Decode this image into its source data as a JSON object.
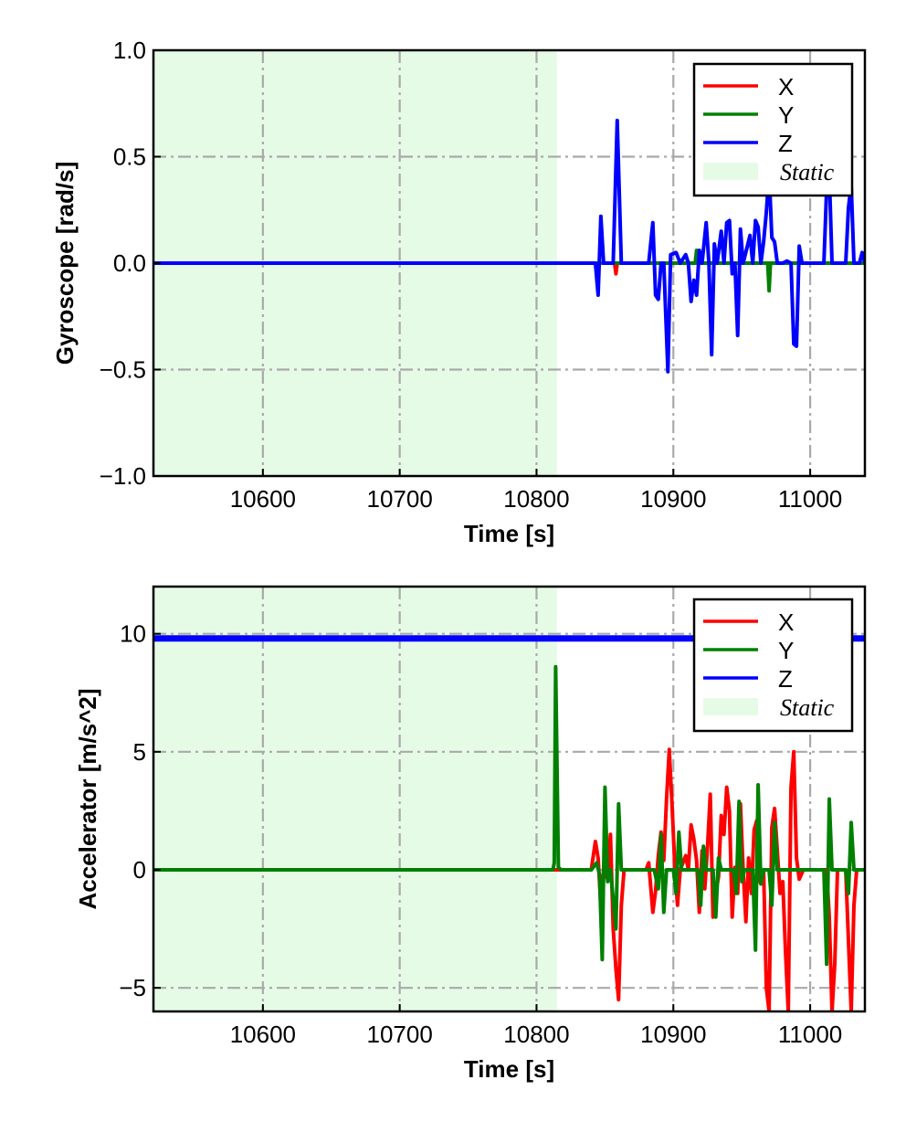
{
  "colors": {
    "X": "#ff0000",
    "Y": "#008000",
    "Z": "#0000ff",
    "static_fill": "#e6fbe6",
    "grid": "#a9a9a9"
  },
  "chart_data": [
    {
      "type": "line",
      "xlabel": "Time [s]",
      "ylabel": "Gyroscope [rad/s]",
      "xlim": [
        10520,
        11040
      ],
      "ylim": [
        -1.0,
        1.0
      ],
      "xticks": [
        10600,
        10700,
        10800,
        10900,
        11000
      ],
      "xtick_labels": [
        "10600",
        "10700",
        "10800",
        "10900",
        "11000"
      ],
      "yticks": [
        -1.0,
        -0.5,
        0.0,
        0.5,
        1.0
      ],
      "ytick_labels": [
        "−1.0",
        "−0.5",
        "0.0",
        "0.5",
        "1.0"
      ],
      "grid": true,
      "legend_position": "top-right",
      "static_region": {
        "label": "Static",
        "x_start": 10520,
        "x_end": 10815
      },
      "series": [
        {
          "name": "X",
          "color": "#ff0000",
          "points": [
            [
              10520,
              0
            ],
            [
              10857,
              0
            ],
            [
              10858,
              -0.05
            ],
            [
              10859,
              0
            ],
            [
              11040,
              0
            ]
          ]
        },
        {
          "name": "Y",
          "color": "#008000",
          "points": [
            [
              10520,
              0
            ],
            [
              10916,
              0
            ],
            [
              10917,
              0.06
            ],
            [
              10918,
              0
            ],
            [
              10969,
              0
            ],
            [
              10970,
              -0.13
            ],
            [
              10971,
              0
            ],
            [
              11040,
              0
            ]
          ]
        },
        {
          "name": "Z",
          "color": "#0000ff",
          "points": [
            [
              10520,
              0
            ],
            [
              10843,
              0
            ],
            [
              10845,
              -0.15
            ],
            [
              10847,
              0.22
            ],
            [
              10849,
              0
            ],
            [
              10856,
              0
            ],
            [
              10859,
              0.67
            ],
            [
              10862,
              0
            ],
            [
              10882,
              0
            ],
            [
              10885,
              0.19
            ],
            [
              10887,
              -0.15
            ],
            [
              10889,
              -0.17
            ],
            [
              10891,
              0
            ],
            [
              10893,
              0
            ],
            [
              10896,
              -0.51
            ],
            [
              10898,
              0.04
            ],
            [
              10902,
              0.05
            ],
            [
              10905,
              0
            ],
            [
              10909,
              0.04
            ],
            [
              10911,
              0
            ],
            [
              10913,
              -0.18
            ],
            [
              10915,
              -0.08
            ],
            [
              10917,
              -0.15
            ],
            [
              10919,
              0.06
            ],
            [
              10921,
              0
            ],
            [
              10924,
              0.19
            ],
            [
              10926,
              0
            ],
            [
              10928,
              -0.43
            ],
            [
              10930,
              0.09
            ],
            [
              10932,
              0
            ],
            [
              10935,
              0.15
            ],
            [
              10937,
              0
            ],
            [
              10939,
              0.19
            ],
            [
              10941,
              0.2
            ],
            [
              10943,
              -0.05
            ],
            [
              10945,
              0
            ],
            [
              10947,
              -0.34
            ],
            [
              10949,
              0.16
            ],
            [
              10951,
              0
            ],
            [
              10956,
              0.13
            ],
            [
              10958,
              0
            ],
            [
              10960,
              0.2
            ],
            [
              10962,
              0.17
            ],
            [
              10964,
              0
            ],
            [
              10966,
              0.1
            ],
            [
              10968,
              0.24
            ],
            [
              10970,
              0.43
            ],
            [
              10972,
              0.12
            ],
            [
              10974,
              0.1
            ],
            [
              10976,
              0
            ],
            [
              10980,
              0
            ],
            [
              10983,
              0.01
            ],
            [
              10986,
              0
            ],
            [
              10988,
              -0.38
            ],
            [
              10990,
              -0.39
            ],
            [
              10992,
              0.08
            ],
            [
              10994,
              0
            ],
            [
              11010,
              0
            ],
            [
              11012,
              0.35
            ],
            [
              11014,
              0.42
            ],
            [
              11016,
              0
            ],
            [
              11026,
              0
            ],
            [
              11028,
              0.26
            ],
            [
              11030,
              0.37
            ],
            [
              11032,
              0
            ],
            [
              11036,
              0
            ],
            [
              11038,
              0.05
            ],
            [
              11040,
              0
            ]
          ]
        }
      ]
    },
    {
      "type": "line",
      "xlabel": "Time [s]",
      "ylabel": "Accelerator [m/s^2]",
      "xlim": [
        10520,
        11040
      ],
      "ylim": [
        -6,
        12
      ],
      "xticks": [
        10600,
        10700,
        10800,
        10900,
        11000
      ],
      "xtick_labels": [
        "10600",
        "10700",
        "10800",
        "10900",
        "11000"
      ],
      "yticks": [
        -5,
        0,
        5,
        10
      ],
      "ytick_labels": [
        "−5",
        "0",
        "5",
        "10"
      ],
      "grid": true,
      "legend_position": "top-right",
      "static_region": {
        "label": "Static",
        "x_start": 10520,
        "x_end": 10815
      },
      "series": [
        {
          "name": "X",
          "color": "#ff0000",
          "points": [
            [
              10520,
              0
            ],
            [
              10840,
              0
            ],
            [
              10843,
              1.2
            ],
            [
              10845,
              0.5
            ],
            [
              10847,
              -1.5
            ],
            [
              10849,
              0
            ],
            [
              10852,
              -0.4
            ],
            [
              10854,
              1.5
            ],
            [
              10856,
              -2.5
            ],
            [
              10858,
              -4.2
            ],
            [
              10860,
              -5.5
            ],
            [
              10862,
              -1.5
            ],
            [
              10864,
              0
            ],
            [
              10880,
              0
            ],
            [
              10882,
              0.3
            ],
            [
              10885,
              -1.8
            ],
            [
              10887,
              -0.9
            ],
            [
              10889,
              0.6
            ],
            [
              10891,
              1.6
            ],
            [
              10893,
              0.4
            ],
            [
              10895,
              3.0
            ],
            [
              10897,
              5.1
            ],
            [
              10899,
              2.8
            ],
            [
              10901,
              0.2
            ],
            [
              10903,
              -1.5
            ],
            [
              10905,
              0
            ],
            [
              10909,
              0.6
            ],
            [
              10911,
              0
            ],
            [
              10913,
              1.9
            ],
            [
              10915,
              1.3
            ],
            [
              10917,
              0.4
            ],
            [
              10919,
              -1.8
            ],
            [
              10921,
              0.8
            ],
            [
              10923,
              -0.8
            ],
            [
              10925,
              1.0
            ],
            [
              10927,
              3.2
            ],
            [
              10929,
              -2.0
            ],
            [
              10931,
              -1.0
            ],
            [
              10933,
              -0.3
            ],
            [
              10935,
              2.3
            ],
            [
              10937,
              1.5
            ],
            [
              10939,
              3.5
            ],
            [
              10941,
              2.5
            ],
            [
              10943,
              -2.0
            ],
            [
              10945,
              0.1
            ],
            [
              10947,
              -1.0
            ],
            [
              10949,
              2.8
            ],
            [
              10951,
              0
            ],
            [
              10953,
              -2.2
            ],
            [
              10955,
              0.5
            ],
            [
              10957,
              -1.0
            ],
            [
              10959,
              1.7
            ],
            [
              10961,
              2.1
            ],
            [
              10963,
              -0.5
            ],
            [
              10966,
              0
            ],
            [
              10968,
              -5.0
            ],
            [
              10970,
              -6.0
            ],
            [
              10972,
              1.8
            ],
            [
              10974,
              2.6
            ],
            [
              10976,
              0.8
            ],
            [
              10978,
              -1.0
            ],
            [
              10980,
              -0.5
            ],
            [
              10982,
              -3.5
            ],
            [
              10984,
              -6.0
            ],
            [
              10986,
              3.5
            ],
            [
              10988,
              5.0
            ],
            [
              10990,
              0.5
            ],
            [
              10992,
              -0.4
            ],
            [
              10995,
              0
            ],
            [
              11012,
              0
            ],
            [
              11014,
              -2.0
            ],
            [
              11016,
              -6.0
            ],
            [
              11018,
              -4.0
            ],
            [
              11020,
              0
            ],
            [
              11026,
              0
            ],
            [
              11028,
              -3.0
            ],
            [
              11030,
              -6.0
            ],
            [
              11032,
              -1.5
            ],
            [
              11034,
              0
            ],
            [
              11040,
              0
            ]
          ]
        },
        {
          "name": "Y",
          "color": "#008000",
          "points": [
            [
              10520,
              0
            ],
            [
              10812,
              0
            ],
            [
              10813,
              0.3
            ],
            [
              10814,
              8.6
            ],
            [
              10816,
              0.1
            ],
            [
              10818,
              0
            ],
            [
              10840,
              0
            ],
            [
              10844,
              0.3
            ],
            [
              10846,
              -0.2
            ],
            [
              10848,
              -3.8
            ],
            [
              10850,
              3.5
            ],
            [
              10852,
              -0.5
            ],
            [
              10854,
              0
            ],
            [
              10858,
              -2.5
            ],
            [
              10860,
              2.8
            ],
            [
              10862,
              0
            ],
            [
              10886,
              0
            ],
            [
              10889,
              -0.8
            ],
            [
              10891,
              1.5
            ],
            [
              10893,
              -1.8
            ],
            [
              10895,
              0
            ],
            [
              10900,
              0
            ],
            [
              10902,
              -1.0
            ],
            [
              10904,
              1.6
            ],
            [
              10906,
              0
            ],
            [
              10918,
              0
            ],
            [
              10920,
              -1.5
            ],
            [
              10922,
              1.0
            ],
            [
              10924,
              0
            ],
            [
              10929,
              0
            ],
            [
              10931,
              -2.0
            ],
            [
              10933,
              0.5
            ],
            [
              10935,
              0
            ],
            [
              10944,
              0
            ],
            [
              10946,
              -1.0
            ],
            [
              10948,
              2.9
            ],
            [
              10950,
              -0.5
            ],
            [
              10952,
              0
            ],
            [
              10958,
              0
            ],
            [
              10960,
              -3.4
            ],
            [
              10962,
              3.6
            ],
            [
              10964,
              -0.6
            ],
            [
              10966,
              0
            ],
            [
              10970,
              0
            ],
            [
              10972,
              -1.5
            ],
            [
              10974,
              2.0
            ],
            [
              10976,
              0
            ],
            [
              11010,
              0
            ],
            [
              11012,
              -4.0
            ],
            [
              11014,
              3.0
            ],
            [
              11016,
              0
            ],
            [
              11026,
              0
            ],
            [
              11028,
              -1.0
            ],
            [
              11030,
              2.0
            ],
            [
              11032,
              0
            ],
            [
              11040,
              0
            ]
          ]
        },
        {
          "name": "Z",
          "color": "#0000ff",
          "points": [
            [
              10520,
              9.8
            ],
            [
              11040,
              9.8
            ]
          ]
        }
      ]
    }
  ]
}
